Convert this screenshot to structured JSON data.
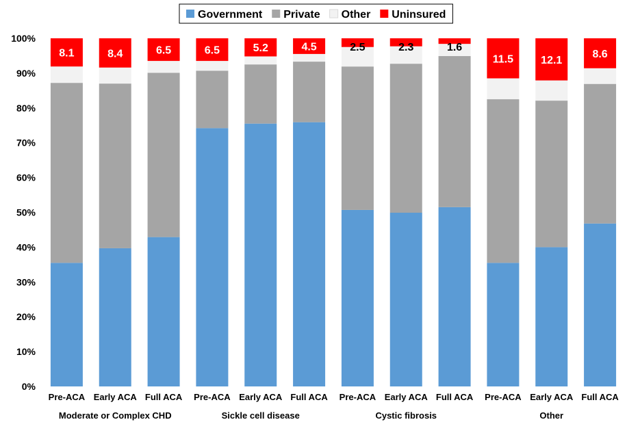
{
  "chart_data": {
    "type": "bar",
    "stacked": true,
    "legend_position": "top",
    "ylim": [
      0,
      100
    ],
    "y_ticks": [
      "0%",
      "10%",
      "20%",
      "30%",
      "40%",
      "50%",
      "60%",
      "70%",
      "80%",
      "90%",
      "100%"
    ],
    "categories": [
      "Pre-ACA",
      "Early ACA",
      "Full ACA",
      "Pre-ACA",
      "Early ACA",
      "Full ACA",
      "Pre-ACA",
      "Early ACA",
      "Full ACA",
      "Pre-ACA",
      "Early ACA",
      "Full ACA"
    ],
    "groups": [
      {
        "label": "Moderate or Complex CHD",
        "count": 3
      },
      {
        "label": "Sickle cell disease",
        "count": 3
      },
      {
        "label": "Cystic fibrosis",
        "count": 3
      },
      {
        "label": "Other",
        "count": 3
      }
    ],
    "series": [
      {
        "name": "Government",
        "color": "#5B9BD5",
        "values": [
          35.5,
          39.7,
          42.9,
          74.2,
          75.5,
          75.9,
          50.7,
          49.9,
          51.5,
          35.5,
          40.0,
          46.8
        ]
      },
      {
        "name": "Private",
        "color": "#A5A5A5",
        "values": [
          51.7,
          47.3,
          47.2,
          16.5,
          17.0,
          17.4,
          41.2,
          42.8,
          43.4,
          47.0,
          42.1,
          40.1
        ]
      },
      {
        "name": "Other",
        "color": "#F2F2F2",
        "values": [
          4.7,
          4.6,
          3.4,
          2.8,
          2.3,
          2.2,
          5.6,
          5.0,
          3.5,
          6.0,
          5.8,
          4.5
        ]
      },
      {
        "name": "Uninsured",
        "color": "#FF0000",
        "values": [
          8.1,
          8.4,
          6.5,
          6.5,
          5.2,
          4.5,
          2.5,
          2.3,
          1.6,
          11.5,
          12.1,
          8.6
        ]
      }
    ],
    "data_labels": [
      "8.1",
      "8.4",
      "6.5",
      "6.5",
      "5.2",
      "4.5",
      "2.5",
      "2.3",
      "1.6",
      "11.5",
      "12.1",
      "8.6"
    ],
    "grid": false
  }
}
